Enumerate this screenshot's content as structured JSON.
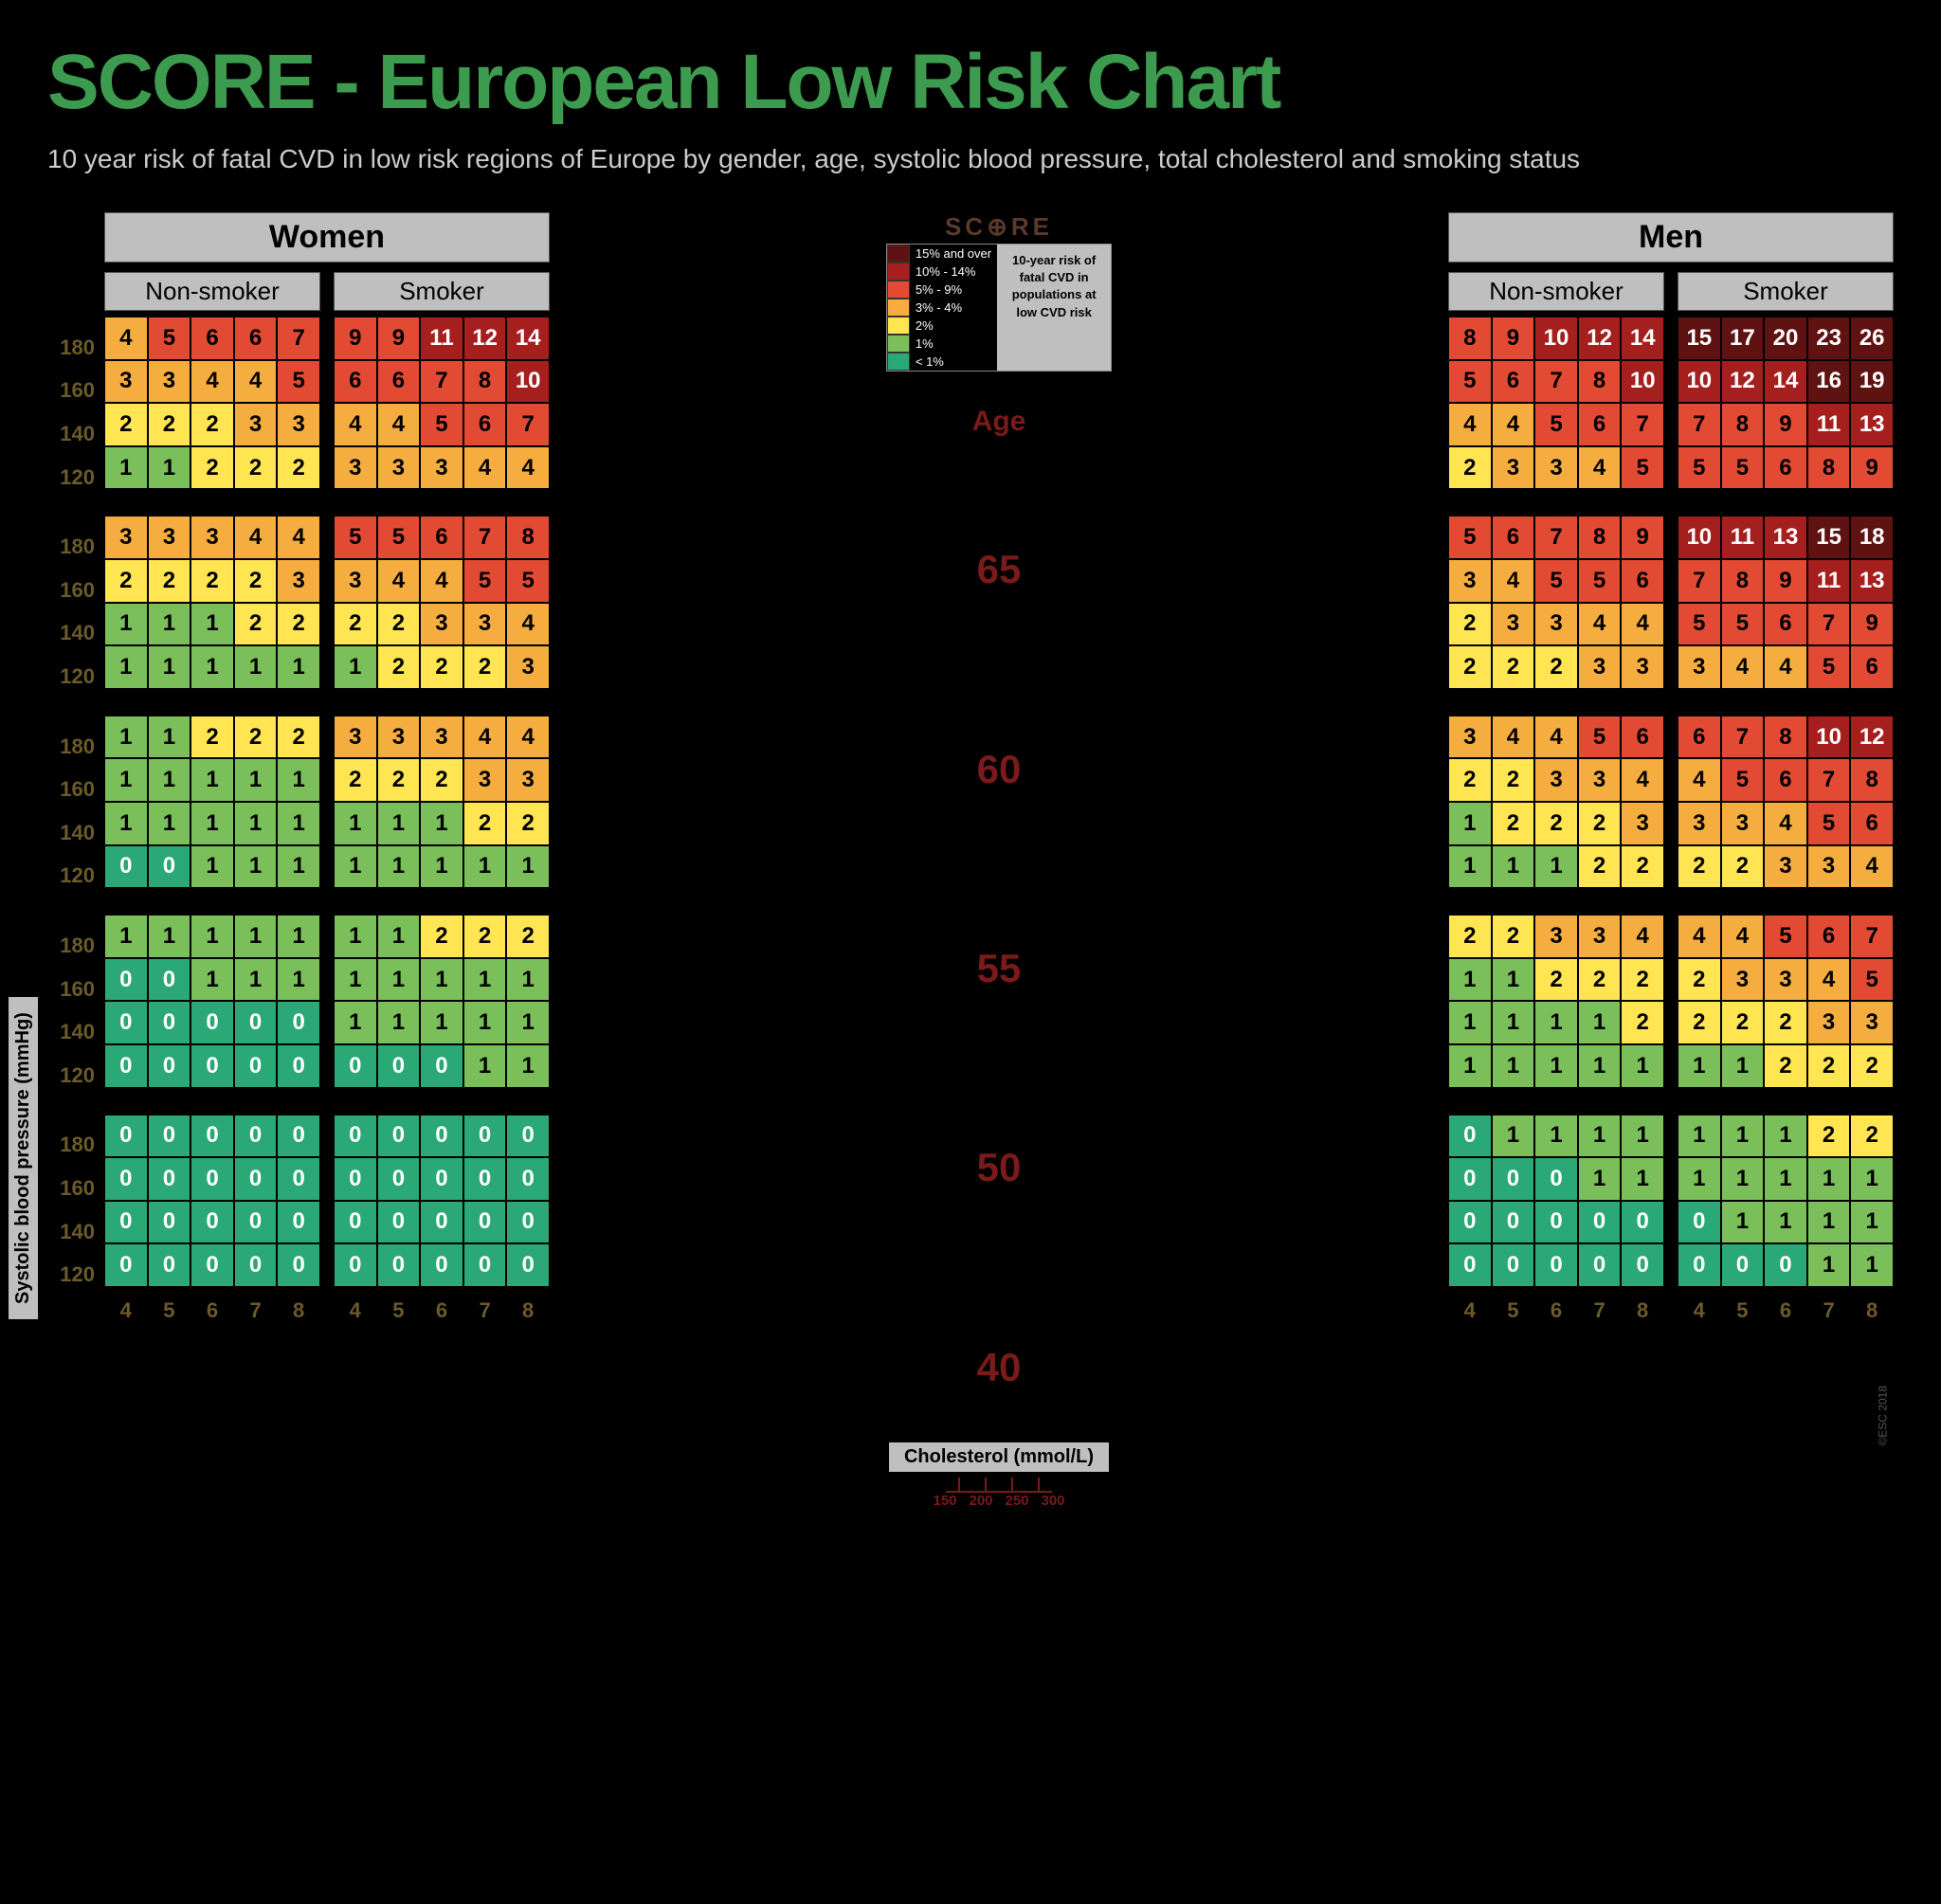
{
  "title": "SCORE - European Low Risk Chart",
  "subtitle": "10 year risk of fatal CVD in low risk regions of Europe by gender, age, systolic blood pressure, total cholesterol and smoking status",
  "y_axis_label": "Systolic blood pressure (mmHg)",
  "x_axis_label": "Cholesterol (mmol/L)",
  "score_logo": "SC⊕RE",
  "legend_desc": "10-year risk of fatal CVD in populations at low CVD risk",
  "age_heading": "Age",
  "copyright": "©ESC 2018",
  "bp_rows": [
    "180",
    "160",
    "140",
    "120"
  ],
  "chol_cols": [
    "4",
    "5",
    "6",
    "7",
    "8"
  ],
  "chol_mgdl": [
    "150",
    "200",
    "250",
    "300"
  ],
  "ages": [
    "65",
    "60",
    "55",
    "50",
    "40"
  ],
  "genders": {
    "women": "Women",
    "men": "Men"
  },
  "smoke": {
    "ns": "Non-smoker",
    "s": "Smoker"
  },
  "colors": {
    "lt1": "#2aa876",
    "r1": "#7bbf5a",
    "r2": "#ffe552",
    "r3_4": "#f5ad3f",
    "r5_9": "#e24a33",
    "r10_14": "#a51f1f",
    "r15": "#5e1212"
  },
  "legend": [
    {
      "c": "r15",
      "l": "15% and over"
    },
    {
      "c": "r10_14",
      "l": "10% - 14%"
    },
    {
      "c": "r5_9",
      "l": "5% - 9%"
    },
    {
      "c": "r3_4",
      "l": "3% - 4%"
    },
    {
      "c": "r2",
      "l": "2%"
    },
    {
      "c": "r1",
      "l": "1%"
    },
    {
      "c": "lt1",
      "l": "< 1%"
    }
  ],
  "grids": {
    "women": {
      "65": {
        "ns": [
          [
            4,
            5,
            6,
            6,
            7
          ],
          [
            3,
            3,
            4,
            4,
            5
          ],
          [
            2,
            2,
            2,
            3,
            3
          ],
          [
            1,
            1,
            2,
            2,
            2
          ]
        ],
        "s": [
          [
            9,
            9,
            11,
            12,
            14
          ],
          [
            6,
            6,
            7,
            8,
            10
          ],
          [
            4,
            4,
            5,
            6,
            7
          ],
          [
            3,
            3,
            3,
            4,
            4
          ]
        ]
      },
      "60": {
        "ns": [
          [
            3,
            3,
            3,
            4,
            4
          ],
          [
            2,
            2,
            2,
            2,
            3
          ],
          [
            1,
            1,
            1,
            2,
            2
          ],
          [
            1,
            1,
            1,
            1,
            1
          ]
        ],
        "s": [
          [
            5,
            5,
            6,
            7,
            8
          ],
          [
            3,
            4,
            4,
            5,
            5
          ],
          [
            2,
            2,
            3,
            3,
            4
          ],
          [
            1,
            2,
            2,
            2,
            3
          ]
        ]
      },
      "55": {
        "ns": [
          [
            1,
            1,
            2,
            2,
            2
          ],
          [
            1,
            1,
            1,
            1,
            1
          ],
          [
            1,
            1,
            1,
            1,
            1
          ],
          [
            0,
            0,
            1,
            1,
            1
          ]
        ],
        "s": [
          [
            3,
            3,
            3,
            4,
            4
          ],
          [
            2,
            2,
            2,
            3,
            3
          ],
          [
            1,
            1,
            1,
            2,
            2
          ],
          [
            1,
            1,
            1,
            1,
            1
          ]
        ]
      },
      "50": {
        "ns": [
          [
            1,
            1,
            1,
            1,
            1
          ],
          [
            0,
            0,
            1,
            1,
            1
          ],
          [
            0,
            0,
            0,
            0,
            0
          ],
          [
            0,
            0,
            0,
            0,
            0
          ]
        ],
        "s": [
          [
            1,
            1,
            2,
            2,
            2
          ],
          [
            1,
            1,
            1,
            1,
            1
          ],
          [
            1,
            1,
            1,
            1,
            1
          ],
          [
            0,
            0,
            0,
            1,
            1
          ]
        ]
      },
      "40": {
        "ns": [
          [
            0,
            0,
            0,
            0,
            0
          ],
          [
            0,
            0,
            0,
            0,
            0
          ],
          [
            0,
            0,
            0,
            0,
            0
          ],
          [
            0,
            0,
            0,
            0,
            0
          ]
        ],
        "s": [
          [
            0,
            0,
            0,
            0,
            0
          ],
          [
            0,
            0,
            0,
            0,
            0
          ],
          [
            0,
            0,
            0,
            0,
            0
          ],
          [
            0,
            0,
            0,
            0,
            0
          ]
        ]
      }
    },
    "men": {
      "65": {
        "ns": [
          [
            8,
            9,
            10,
            12,
            14
          ],
          [
            5,
            6,
            7,
            8,
            10
          ],
          [
            4,
            4,
            5,
            6,
            7
          ],
          [
            2,
            3,
            3,
            4,
            5
          ]
        ],
        "s": [
          [
            15,
            17,
            20,
            23,
            26
          ],
          [
            10,
            12,
            14,
            16,
            19
          ],
          [
            7,
            8,
            9,
            11,
            13
          ],
          [
            5,
            5,
            6,
            8,
            9
          ]
        ]
      },
      "60": {
        "ns": [
          [
            5,
            6,
            7,
            8,
            9
          ],
          [
            3,
            4,
            5,
            5,
            6
          ],
          [
            2,
            3,
            3,
            4,
            4
          ],
          [
            2,
            2,
            2,
            3,
            3
          ]
        ],
        "s": [
          [
            10,
            11,
            13,
            15,
            18
          ],
          [
            7,
            8,
            9,
            11,
            13
          ],
          [
            5,
            5,
            6,
            7,
            9
          ],
          [
            3,
            4,
            4,
            5,
            6
          ]
        ]
      },
      "55": {
        "ns": [
          [
            3,
            4,
            4,
            5,
            6
          ],
          [
            2,
            2,
            3,
            3,
            4
          ],
          [
            1,
            2,
            2,
            2,
            3
          ],
          [
            1,
            1,
            1,
            2,
            2
          ]
        ],
        "s": [
          [
            6,
            7,
            8,
            10,
            12
          ],
          [
            4,
            5,
            6,
            7,
            8
          ],
          [
            3,
            3,
            4,
            5,
            6
          ],
          [
            2,
            2,
            3,
            3,
            4
          ]
        ]
      },
      "50": {
        "ns": [
          [
            2,
            2,
            3,
            3,
            4
          ],
          [
            1,
            1,
            2,
            2,
            2
          ],
          [
            1,
            1,
            1,
            1,
            2
          ],
          [
            1,
            1,
            1,
            1,
            1
          ]
        ],
        "s": [
          [
            4,
            4,
            5,
            6,
            7
          ],
          [
            2,
            3,
            3,
            4,
            5
          ],
          [
            2,
            2,
            2,
            3,
            3
          ],
          [
            1,
            1,
            2,
            2,
            2
          ]
        ]
      },
      "40": {
        "ns": [
          [
            0,
            1,
            1,
            1,
            1
          ],
          [
            0,
            0,
            0,
            1,
            1
          ],
          [
            0,
            0,
            0,
            0,
            0
          ],
          [
            0,
            0,
            0,
            0,
            0
          ]
        ],
        "s": [
          [
            1,
            1,
            1,
            2,
            2
          ],
          [
            1,
            1,
            1,
            1,
            1
          ],
          [
            0,
            1,
            1,
            1,
            1
          ],
          [
            0,
            0,
            0,
            1,
            1
          ]
        ]
      }
    }
  }
}
